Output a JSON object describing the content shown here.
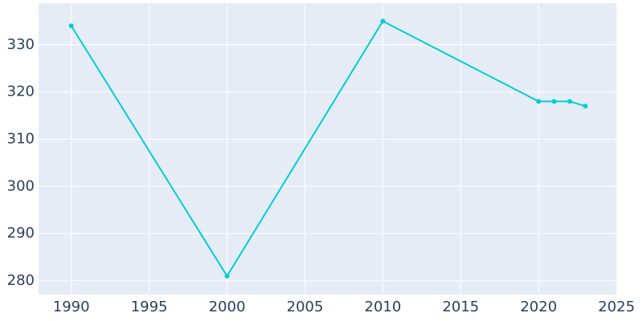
{
  "chart_data": {
    "type": "line",
    "x": [
      1990,
      2000,
      2010,
      2020,
      2021,
      2022,
      2023
    ],
    "series": [
      {
        "color": "#00ced1",
        "values": [
          334,
          281,
          335,
          318,
          318,
          318,
          317
        ]
      }
    ],
    "xlim": [
      1987.9,
      2025.05
    ],
    "xticks": [
      1990,
      1995,
      2000,
      2005,
      2010,
      2015,
      2020,
      2025
    ],
    "ylim": [
      277.1,
      338.8
    ],
    "yticks": [
      280,
      290,
      300,
      310,
      320,
      330
    ],
    "grid": true
  }
}
